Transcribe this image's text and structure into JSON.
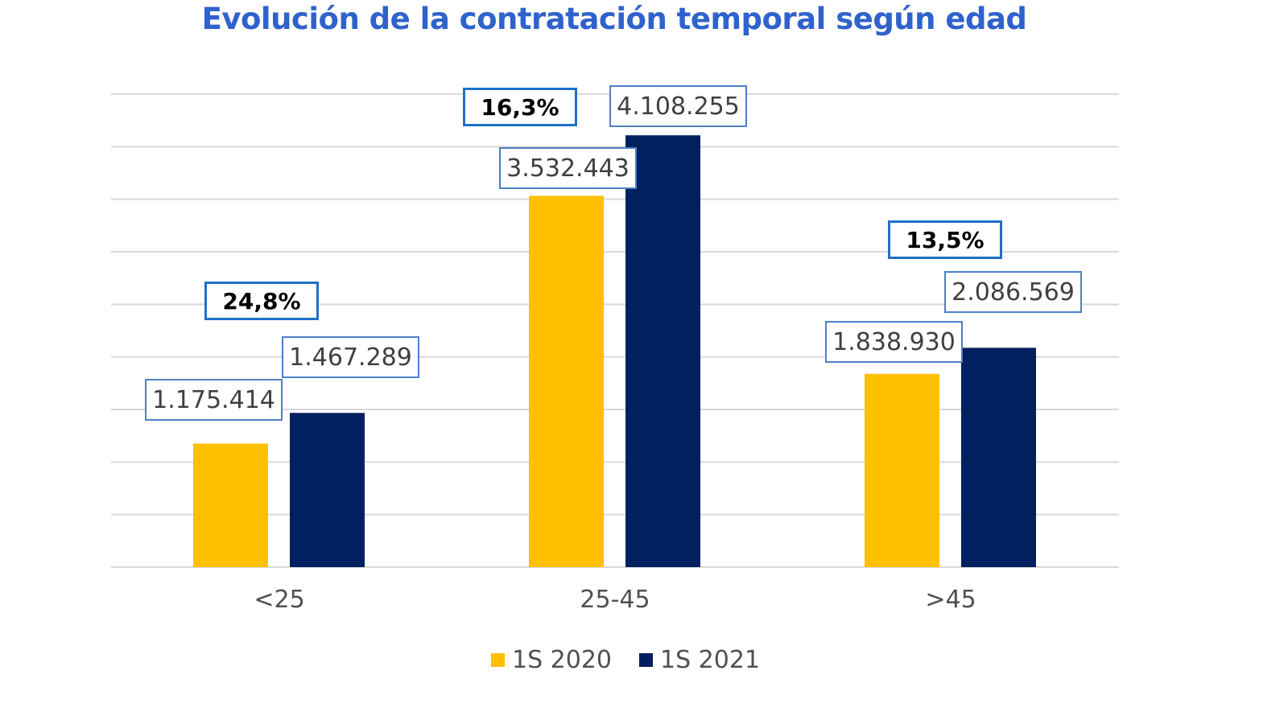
{
  "chart_data": {
    "type": "bar",
    "title": "Evolución de la contratación temporal según edad",
    "categories": [
      "<25",
      "25-45",
      ">45"
    ],
    "series": [
      {
        "name": "1S 2020",
        "color": "#FFC000",
        "values": [
          1175414,
          3532443,
          1838930
        ],
        "labels": [
          "1.175.414",
          "3.532.443",
          "1.838.930"
        ]
      },
      {
        "name": "1S 2021",
        "color": "#002060",
        "values": [
          1467289,
          4108255,
          2086569
        ],
        "labels": [
          "1.467.289",
          "4.108.255",
          "2.086.569"
        ]
      }
    ],
    "annotations": [
      "24,8%",
      "16,3%",
      "13,5%"
    ],
    "ylim": [
      0,
      4500000
    ],
    "ytick_step": 500000,
    "y_tick_labels_shown": false,
    "grid": true,
    "legend": "bottom"
  }
}
